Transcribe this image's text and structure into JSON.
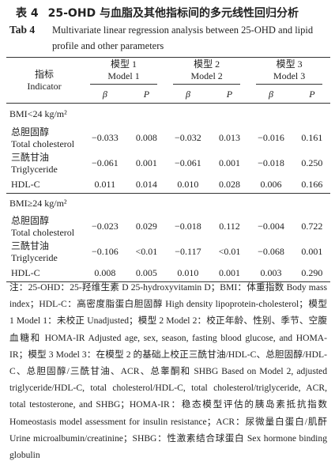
{
  "caption": {
    "label_cn": "表 4",
    "title_cn": "25-OHD 与血脂及其他指标间的多元线性回归分析",
    "label_en": "Tab 4",
    "title_en": "Multivariate linear regression analysis between 25-OHD and lipid profile and other parameters"
  },
  "header": {
    "indicator_cn": "指标",
    "indicator_en": "Indicator",
    "models": [
      {
        "cn": "模型 1",
        "en": "Model 1"
      },
      {
        "cn": "模型 2",
        "en": "Model 2"
      },
      {
        "cn": "模型 3",
        "en": "Model 3"
      }
    ],
    "stats": [
      "β",
      "P"
    ]
  },
  "groups": [
    {
      "label": "BMI<24 kg/m²",
      "rows": [
        {
          "cn": "总胆固醇",
          "en": "Total cholesterol",
          "values": [
            "−0.033",
            "0.008",
            "−0.032",
            "0.013",
            "−0.016",
            "0.161"
          ]
        },
        {
          "cn": "三酰甘油",
          "en": "Triglyceride",
          "values": [
            "−0.061",
            "0.001",
            "−0.061",
            "0.001",
            "−0.018",
            "0.250"
          ]
        },
        {
          "cn": null,
          "en": "HDL-C",
          "values": [
            "0.011",
            "0.014",
            "0.010",
            "0.028",
            "0.006",
            "0.166"
          ]
        }
      ]
    },
    {
      "label": "BMI≥24 kg/m²",
      "rows": [
        {
          "cn": "总胆固醇",
          "en": "Total cholesterol",
          "values": [
            "−0.023",
            "0.029",
            "−0.018",
            "0.112",
            "−0.004",
            "0.722"
          ]
        },
        {
          "cn": "三酰甘油",
          "en": "Triglyceride",
          "values": [
            "−0.106",
            "<0.01",
            "−0.117",
            "<0.01",
            "−0.068",
            "0.001"
          ]
        },
        {
          "cn": null,
          "en": "HDL-C",
          "values": [
            "0.008",
            "0.005",
            "0.010",
            "0.001",
            "0.003",
            "0.290"
          ]
        }
      ]
    }
  ],
  "note": "注：25-OHD：25-羟维生素 D 25-hydroxyvitamin D；BMI：体重指数 Body mass index；HDL-C：高密度脂蛋白胆固醇 High density lipoprotein-cholesterol；模型 1 Model 1：未校正 Unadjusted；模型 2 Model 2：校正年龄、性别、季节、空腹血糖和 HOMA-IR Adjusted age, sex, season, fasting blood glucose, and HOMA-IR；模型 3 Model 3：在模型 2 的基础上校正三酰甘油/HDL-C、总胆固醇/HDL-C、总胆固醇/三酰甘油、ACR、总睾酮和 SHBG Based on Model 2, adjusted triglyceride/HDL-C, total cholesterol/HDL-C, total cholesterol/triglyceride, ACR, total testosterone, and SHBG；HOMA-IR：稳态模型评估的胰岛素抵抗指数 Homeostasis model assessment for insulin resistance；ACR：尿微量白蛋白/肌酐 Urine microalbumin/creatinine；SHBG：性激素结合球蛋白 Sex hormone binding globulin"
}
